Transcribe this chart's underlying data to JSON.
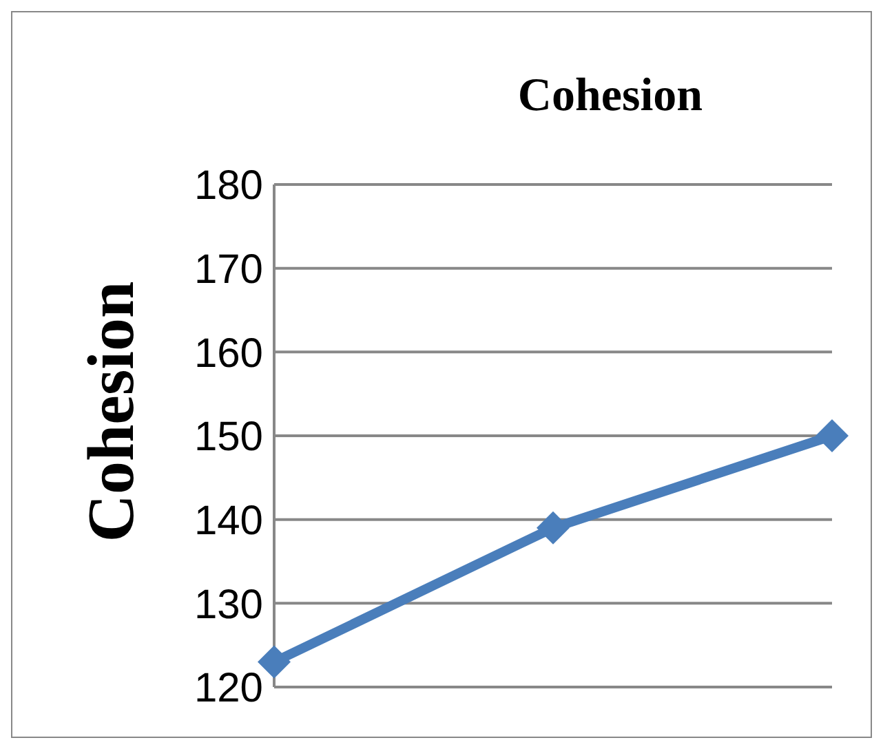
{
  "chart_data": {
    "type": "line",
    "title": "Cohesion",
    "ylabel": "Cohesion",
    "categories": [
      null,
      null,
      null
    ],
    "series": [
      {
        "color": "#4a7ebb",
        "values": [
          123,
          139,
          150
        ]
      }
    ],
    "ylim": [
      120,
      180
    ],
    "yticks": [
      120,
      130,
      140,
      150,
      160,
      170,
      180
    ],
    "grid": "y",
    "marker": "diamond",
    "line_style": "solid",
    "tick_labels": "y"
  }
}
